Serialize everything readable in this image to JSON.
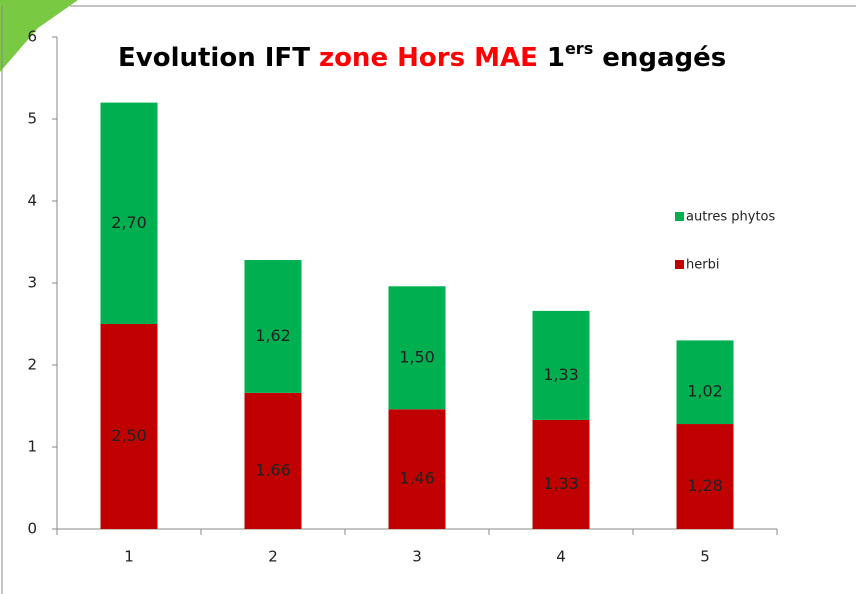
{
  "chart_data": {
    "type": "stacked_bar",
    "title": [
      {
        "text": "Evolution IFT",
        "color": "#000000"
      },
      {
        "text": "zone Hors MAE",
        "color": "#ff0000"
      },
      {
        "text": "1",
        "color": "#000000"
      },
      {
        "text": "ers",
        "color": "#000000",
        "superscript": true
      },
      {
        "text": "engagés",
        "color": "#000000"
      }
    ],
    "categories": [
      "1",
      "2",
      "3",
      "4",
      "5"
    ],
    "series": [
      {
        "name": "herbi",
        "color": "#c00000",
        "values": [
          2.5,
          1.66,
          1.46,
          1.33,
          1.28
        ],
        "value_labels": [
          "2,50",
          "1,66",
          "1,46",
          "1,33",
          "1,28"
        ]
      },
      {
        "name": "autres phytos",
        "color": "#00b050",
        "values": [
          2.7,
          1.62,
          1.5,
          1.33,
          1.02
        ],
        "value_labels": [
          "2,70",
          "1,62",
          "1,50",
          "1,33",
          "1,02"
        ]
      }
    ],
    "ylim": [
      0,
      6
    ],
    "yticks": [
      0,
      1,
      2,
      3,
      4,
      5,
      6
    ],
    "grid": false,
    "legend": "right"
  }
}
